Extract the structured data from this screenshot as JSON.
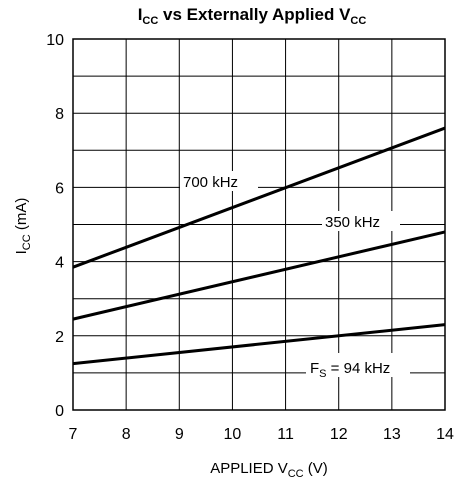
{
  "chart_data": {
    "type": "line",
    "title": {
      "pre": "I",
      "sub1": "CC",
      "mid": " vs Externally Applied V",
      "sub2": "CC"
    },
    "xlabel": {
      "pre": "APPLIED V",
      "sub": "CC",
      "post": " (V)"
    },
    "ylabel": {
      "pre": "I",
      "sub": "CC",
      "post": " (mA)"
    },
    "xlim": [
      7,
      14
    ],
    "ylim": [
      0,
      10
    ],
    "x_ticks": [
      "7",
      "8",
      "9",
      "10",
      "11",
      "12",
      "13",
      "14"
    ],
    "y_ticks": [
      "0",
      "2",
      "4",
      "6",
      "8",
      "10"
    ],
    "x_minor_step": 1,
    "y_minor_step": 1,
    "grid": true,
    "line_color": "#000000",
    "series": [
      {
        "name": "700 kHz",
        "x": [
          7,
          14
        ],
        "y": [
          3.85,
          7.6
        ]
      },
      {
        "name": "350 kHz",
        "x": [
          7,
          14
        ],
        "y": [
          2.45,
          4.8
        ]
      },
      {
        "name": {
          "pre": "F",
          "sub": "S",
          "post": " = 94 kHz"
        },
        "x": [
          7,
          14
        ],
        "y": [
          1.25,
          2.3
        ]
      }
    ]
  }
}
